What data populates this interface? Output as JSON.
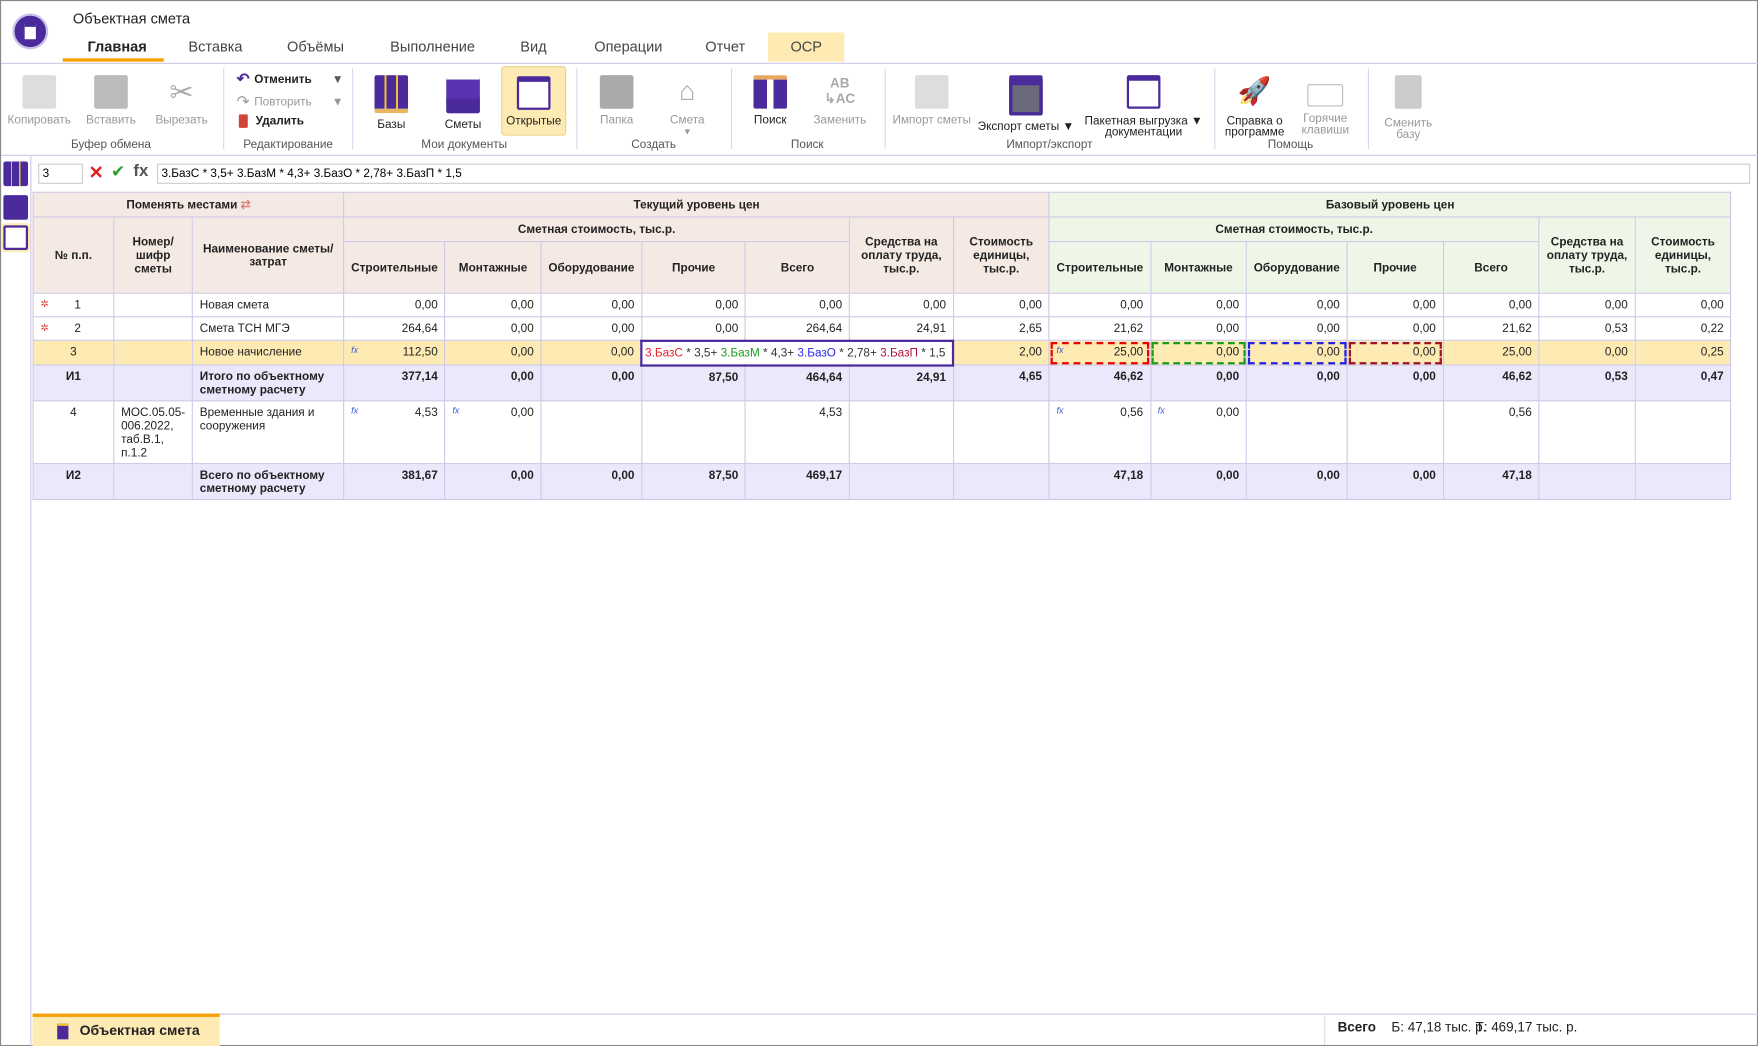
{
  "app": {
    "title": "Объектная смета"
  },
  "tabs": [
    {
      "label": "Главная"
    },
    {
      "label": "Вставка"
    },
    {
      "label": "Объёмы"
    },
    {
      "label": "Выполнение"
    },
    {
      "label": "Вид"
    },
    {
      "label": "Операции"
    },
    {
      "label": "Отчет"
    },
    {
      "label": "ОСР"
    }
  ],
  "ribbon": {
    "clipboard": {
      "label": "Буфер обмена",
      "copy": "Копировать",
      "paste": "Вставить",
      "cut": "Вырезать"
    },
    "edit": {
      "label": "Редактирование",
      "undo": "Отменить",
      "redo": "Повторить",
      "delete": "Удалить"
    },
    "mydocs": {
      "label": "Мои документы",
      "bases": "Базы",
      "estimates": "Сметы",
      "opened": "Открытые"
    },
    "create": {
      "label": "Создать",
      "folder": "Папка",
      "estimate": "Смета"
    },
    "search": {
      "label": "Поиск",
      "find": "Поиск",
      "replace": "Заменить"
    },
    "io": {
      "label": "Импорт/экспорт",
      "import": "Импорт сметы",
      "export": "Экспорт сметы",
      "batch1": "Пакетная выгрузка",
      "batch2": "документации"
    },
    "help": {
      "label": "Помощь",
      "about1": "Справка о",
      "about2": "программе",
      "hotkeys1": "Горячие",
      "hotkeys2": "клавиши"
    },
    "base": {
      "change1": "Сменить",
      "change2": "базу"
    }
  },
  "formula_bar": {
    "cell": "3",
    "formula": "3.БазС * 3,5+ 3.БазМ * 4,3+ 3.БазО * 2,78+ 3.БазП * 1,5",
    "fx": "fx"
  },
  "table": {
    "swap": "Поменять местами",
    "current": "Текущий уровень цен",
    "base": "Базовый уровень цен",
    "col_num": "№ п.п.",
    "col_code": "Номер/шифр сметы",
    "col_name": "Наименование сметы/ затрат",
    "cost_group": "Сметная стоимость, тыс.р.",
    "cols": [
      "Строительные",
      "Монтажные",
      "Оборудование",
      "Прочие",
      "Всего"
    ],
    "labor": "Средства на оплату труда, тыс.р.",
    "unit": "Стоимость единицы, тыс.р.",
    "rows": [
      {
        "type": "",
        "mark": true,
        "num": "1",
        "code": "",
        "name": "Новая смета",
        "cur": [
          "0,00",
          "0,00",
          "0,00",
          "0,00",
          "0,00",
          "0,00",
          "0,00"
        ],
        "base": [
          "0,00",
          "0,00",
          "0,00",
          "0,00",
          "0,00",
          "0,00",
          "0,00"
        ]
      },
      {
        "type": "",
        "mark": true,
        "num": "2",
        "code": "",
        "name": "Смета ТСН МГЭ",
        "cur": [
          "264,64",
          "0,00",
          "0,00",
          "0,00",
          "264,64",
          "24,91",
          "2,65"
        ],
        "base": [
          "21,62",
          "0,00",
          "0,00",
          "0,00",
          "21,62",
          "0,53",
          "0,22"
        ]
      },
      {
        "type": "sel",
        "mark": false,
        "num": "3",
        "code": "",
        "name": "Новое начисление",
        "cur": [
          "112,50",
          "0,00",
          "0,00",
          "",
          "",
          "",
          "2,00"
        ],
        "base": [
          "25,00",
          "0,00",
          "0,00",
          "0,00",
          "25,00",
          "0,00",
          "0,25"
        ]
      },
      {
        "type": "tot",
        "mark": false,
        "num": "И1",
        "code": "",
        "name": "Итого по объектному сметному расчету",
        "cur": [
          "377,14",
          "0,00",
          "0,00",
          "87,50",
          "464,64",
          "24,91",
          "4,65"
        ],
        "base": [
          "46,62",
          "0,00",
          "0,00",
          "0,00",
          "46,62",
          "0,53",
          "0,47"
        ]
      },
      {
        "type": "",
        "mark": false,
        "num": "4",
        "code": "МОС.05.05-006.2022, таб.В.1, п.1.2",
        "name": "Временные здания и сооружения",
        "cur": [
          "4,53",
          "0,00",
          "",
          "",
          "4,53",
          "",
          ""
        ],
        "base": [
          "0,56",
          "0,00",
          "",
          "",
          "0,56",
          "",
          ""
        ]
      },
      {
        "type": "tot",
        "mark": false,
        "num": "И2",
        "code": "",
        "name": "Всего по объектному сметному расчету",
        "cur": [
          "381,67",
          "0,00",
          "0,00",
          "87,50",
          "469,17",
          "",
          ""
        ],
        "base": [
          "47,18",
          "0,00",
          "0,00",
          "0,00",
          "47,18",
          "",
          ""
        ]
      }
    ],
    "formula_parts": [
      {
        "t": "3.БазС",
        "c": "#e0202c"
      },
      {
        "t": " * 3,5+ ",
        "c": "#333"
      },
      {
        "t": "3.БазМ",
        "c": "#1a9e1a"
      },
      {
        "t": " * 4,3+ ",
        "c": "#333"
      },
      {
        "t": "3.БазО",
        "c": "#2a2ae6"
      },
      {
        "t": " * 2,78+ ",
        "c": "#333"
      },
      {
        "t": "3.БазП",
        "c": "#b0123a"
      },
      {
        "t": " * 1,5",
        "c": "#333"
      }
    ]
  },
  "bottom": {
    "tab": "Объектная смета",
    "total_label": "Всего",
    "base_total": "Б: 47,18 тыс. р.",
    "current_total": "Т: 469,17 тыс. р."
  },
  "colors": {
    "accent": "#4b2a9b",
    "highlight": "#fdebb3",
    "tab_underline": "#f5a000"
  }
}
